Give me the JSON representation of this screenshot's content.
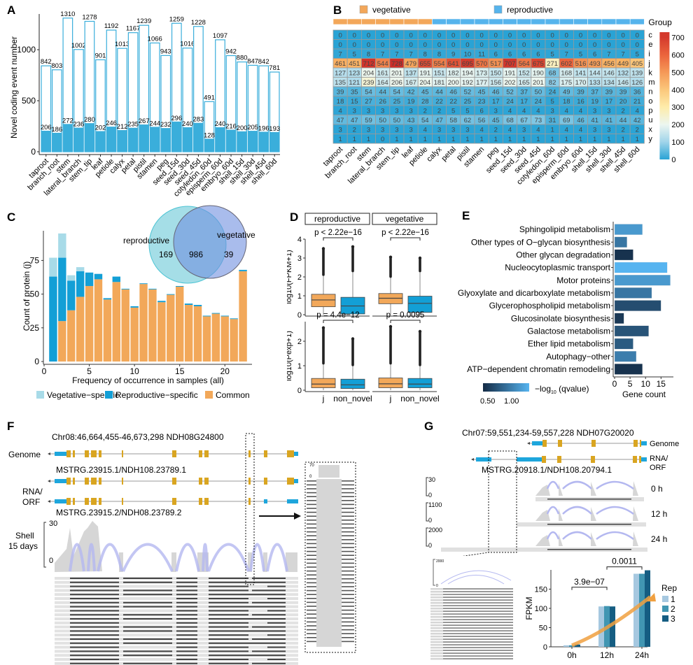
{
  "chart_data": [
    {
      "panel": "A",
      "type": "bar",
      "ylabel": "Novel coding event number",
      "xlabel": "",
      "ylim": [
        0,
        1350
      ],
      "yticks": [
        0,
        500,
        1000
      ],
      "categories": [
        "taproot",
        "branch_root",
        "stem",
        "lateral_branch",
        "stem_tip",
        "leaf",
        "petiole",
        "calyx",
        "petal",
        "pistil",
        "stamen",
        "peg",
        "seed_15d",
        "seed_30d",
        "seed_45d",
        "cotyledon_60d",
        "episperm_60d",
        "embryo_60d",
        "shell_15d",
        "shell_30d",
        "shell_45d",
        "shell_60d"
      ],
      "series": [
        {
          "name": "total",
          "values": [
            842,
            803,
            1310,
            1002,
            1278,
            901,
            1192,
            1013,
            1167,
            1239,
            1066,
            943,
            1259,
            1016,
            1228,
            491,
            1097,
            942,
            880,
            847,
            842,
            781
          ],
          "color": "#3aaedb"
        },
        {
          "name": "subset",
          "values": [
            206,
            186,
            272,
            236,
            280,
            202,
            246,
            212,
            235,
            267,
            244,
            232,
            296,
            240,
            283,
            128,
            240,
            216,
            200,
            205,
            196,
            193
          ],
          "color": "#3aaedb"
        }
      ]
    },
    {
      "panel": "B",
      "type": "heatmap",
      "group_title": "Group",
      "legend": [
        {
          "name": "vegetative",
          "color": "#f3a75a"
        },
        {
          "name": "reproductive",
          "color": "#56b4ec"
        }
      ],
      "columns": [
        "taproot",
        "branch_root",
        "stem",
        "lateral_branch",
        "stem_tip",
        "leaf",
        "petiole",
        "calyx",
        "petal",
        "pistil",
        "stamen",
        "peg",
        "seed_15d",
        "seed_30d",
        "seed_45d",
        "cotyledon_60d",
        "episperm_60d",
        "embryo_60d",
        "shell_15d",
        "shell_30d",
        "shell_45d",
        "shell_60d"
      ],
      "column_groups": [
        "vegetative",
        "vegetative",
        "vegetative",
        "vegetative",
        "vegetative",
        "vegetative",
        "vegetative",
        "reproductive",
        "reproductive",
        "reproductive",
        "reproductive",
        "reproductive",
        "reproductive",
        "reproductive",
        "reproductive",
        "reproductive",
        "reproductive",
        "reproductive",
        "reproductive",
        "reproductive",
        "reproductive",
        "reproductive"
      ],
      "rows": [
        "c",
        "e",
        "i",
        "j",
        "k",
        "m",
        "n",
        "o",
        "p",
        "u",
        "x",
        "y"
      ],
      "values": [
        [
          0,
          0,
          0,
          0,
          0,
          0,
          0,
          0,
          0,
          0,
          0,
          0,
          0,
          0,
          0,
          0,
          0,
          0,
          0,
          0,
          0,
          0
        ],
        [
          0,
          0,
          0,
          0,
          0,
          0,
          0,
          0,
          0,
          0,
          0,
          0,
          0,
          0,
          0,
          0,
          0,
          0,
          0,
          0,
          0,
          0
        ],
        [
          7,
          5,
          8,
          7,
          7,
          7,
          8,
          8,
          9,
          10,
          11,
          6,
          6,
          6,
          6,
          5,
          7,
          5,
          6,
          7,
          7,
          5
        ],
        [
          461,
          451,
          712,
          544,
          728,
          479,
          655,
          554,
          641,
          695,
          570,
          517,
          707,
          564,
          675,
          271,
          602,
          516,
          493,
          456,
          449,
          405
        ],
        [
          127,
          123,
          204,
          161,
          201,
          137,
          191,
          151,
          182,
          194,
          173,
          150,
          191,
          152,
          190,
          68,
          168,
          141,
          144,
          146,
          132,
          139
        ],
        [
          135,
          121,
          239,
          164,
          206,
          167,
          204,
          181,
          200,
          192,
          177,
          156,
          202,
          165,
          201,
          82,
          175,
          170,
          133,
          134,
          146,
          126
        ],
        [
          39,
          35,
          54,
          44,
          54,
          42,
          45,
          44,
          46,
          52,
          45,
          46,
          52,
          37,
          50,
          24,
          49,
          39,
          37,
          39,
          39,
          36
        ],
        [
          18,
          15,
          27,
          26,
          25,
          19,
          28,
          22,
          22,
          25,
          23,
          17,
          24,
          17,
          24,
          5,
          18,
          16,
          19,
          17,
          20,
          21
        ],
        [
          4,
          3,
          3,
          3,
          3,
          3,
          2,
          2,
          5,
          5,
          6,
          3,
          4,
          4,
          4,
          3,
          4,
          4,
          3,
          3,
          2,
          4
        ],
        [
          47,
          47,
          59,
          50,
          50,
          43,
          54,
          47,
          58,
          62,
          56,
          45,
          68,
          67,
          73,
          31,
          69,
          46,
          41,
          41,
          44,
          42
        ],
        [
          3,
          2,
          3,
          3,
          3,
          3,
          4,
          3,
          3,
          3,
          4,
          2,
          4,
          3,
          4,
          1,
          4,
          4,
          3,
          3,
          2,
          2
        ],
        [
          1,
          1,
          1,
          0,
          1,
          1,
          1,
          1,
          1,
          1,
          1,
          1,
          1,
          1,
          1,
          1,
          1,
          1,
          1,
          1,
          1,
          1
        ]
      ],
      "colorbar": {
        "ticks": [
          0,
          100,
          200,
          300,
          400,
          500,
          600,
          700
        ],
        "range": [
          0,
          730
        ]
      }
    },
    {
      "panel": "C",
      "type": "bar",
      "stacked": true,
      "xlabel": "Frequency of occurrence in samples (all)",
      "ylabel": "Count of protein (j)",
      "xlim": [
        0,
        23
      ],
      "ylim": [
        0,
        97
      ],
      "xticks": [
        0,
        5,
        10,
        15,
        20
      ],
      "yticks": [
        0,
        25,
        50,
        75
      ],
      "x": [
        1,
        2,
        3,
        4,
        5,
        6,
        7,
        8,
        9,
        10,
        11,
        12,
        13,
        14,
        15,
        16,
        17,
        18,
        19,
        20,
        21,
        22
      ],
      "series": [
        {
          "name": "Common",
          "color": "#f2a85a",
          "values": [
            0,
            30,
            38,
            48,
            56,
            61,
            46,
            59,
            53.5,
            40,
            57.5,
            53.5,
            44,
            49.5,
            55.5,
            42,
            41,
            33.5,
            35.5,
            33.5,
            31.5,
            67
          ]
        },
        {
          "name": "Reproductive−specific",
          "color": "#139fd6",
          "values": [
            63,
            47,
            22,
            19,
            10,
            4,
            1,
            4,
            0.5,
            1,
            0.5,
            0.5,
            1,
            0.5,
            0.5,
            1,
            1,
            0.5,
            0.5,
            0.5,
            0.5,
            1
          ]
        },
        {
          "name": "Vegetative−specific",
          "color": "#a8dbe8",
          "values": [
            14,
            18,
            4,
            3,
            0,
            0,
            0,
            0,
            0,
            0,
            0,
            0,
            0,
            0,
            0,
            0,
            0,
            0,
            0,
            0,
            0,
            0
          ]
        }
      ],
      "legend_position": "bottom",
      "venn": {
        "sets": [
          "reproductive",
          "vegetative"
        ],
        "only_reproductive": 169,
        "both": 986,
        "only_vegetative": 39
      }
    },
    {
      "panel": "D",
      "type": "box",
      "facets": [
        "reproductive",
        "vegetative"
      ],
      "categories": [
        "j",
        "non_novel"
      ],
      "rows": [
        {
          "ylabel": "log10(FPKM+1)",
          "ylim": [
            0,
            4
          ],
          "yticks": [
            0,
            1,
            2,
            3,
            4
          ],
          "pvalues": [
            "p < 2.22e−16",
            "p < 2.22e−16"
          ],
          "boxes": [
            {
              "facet": "reproductive",
              "cat": "j",
              "q1": 0.42,
              "median": 0.78,
              "q3": 1.08,
              "lo": 0,
              "hi": 2.05,
              "out_max": 3.5
            },
            {
              "facet": "reproductive",
              "cat": "non_novel",
              "q1": 0.04,
              "median": 0.46,
              "q3": 0.92,
              "lo": 0,
              "hi": 2.25,
              "out_max": 3.6
            },
            {
              "facet": "vegetative",
              "cat": "j",
              "q1": 0.58,
              "median": 0.87,
              "q3": 1.12,
              "lo": 0,
              "hi": 1.95,
              "out_max": 3.05
            },
            {
              "facet": "vegetative",
              "cat": "non_novel",
              "q1": 0.12,
              "median": 0.6,
              "q3": 0.98,
              "lo": 0,
              "hi": 2.25,
              "out_max": 3.0
            }
          ]
        },
        {
          "ylabel": "log10(Pexp+1)",
          "ylim": [
            0,
            2.8
          ],
          "yticks": [
            0,
            1,
            2
          ],
          "pvalues": [
            "p = 4.4e−12",
            "p = 0.0095"
          ],
          "boxes": [
            {
              "facet": "reproductive",
              "cat": "j",
              "q1": 0.1,
              "median": 0.25,
              "q3": 0.48,
              "lo": 0,
              "hi": 1.05,
              "out_max": 2.55
            },
            {
              "facet": "reproductive",
              "cat": "non_novel",
              "q1": 0.07,
              "median": 0.22,
              "q3": 0.45,
              "lo": 0,
              "hi": 0.98,
              "out_max": 2.1
            },
            {
              "facet": "vegetative",
              "cat": "j",
              "q1": 0.1,
              "median": 0.26,
              "q3": 0.5,
              "lo": 0,
              "hi": 1.05,
              "out_max": 2.6
            },
            {
              "facet": "vegetative",
              "cat": "non_novel",
              "q1": 0.1,
              "median": 0.25,
              "q3": 0.48,
              "lo": 0,
              "hi": 0.98,
              "out_max": 2.4
            }
          ]
        }
      ]
    },
    {
      "panel": "E",
      "type": "bar",
      "orientation": "horizontal",
      "xlabel": "Gene count",
      "xticks": [
        0,
        5,
        10,
        15
      ],
      "xlim": [
        0,
        19
      ],
      "categories": [
        "Sphingolipid metabolism",
        "Other types of O−glycan biosynthesis",
        "Other glycan degradation",
        "Nucleocytoplasmic transport",
        "Motor proteins",
        "Glyoxylate and dicarboxylate metabolism",
        "Glycerophospholipid metabolism",
        "Glucosinolate biosynthesis",
        "Galactose metabolism",
        "Ether lipid metabolism",
        "Autophagy−other",
        "ATP−dependent chromatin remodeling"
      ],
      "values": [
        9,
        4,
        6,
        17,
        18,
        12,
        15,
        3,
        11,
        6,
        7,
        9
      ],
      "qvalue": [
        1.1,
        0.85,
        0.35,
        1.3,
        1.1,
        0.85,
        0.55,
        0.4,
        0.6,
        0.65,
        0.9,
        0.35
      ],
      "colorbar": {
        "title": "−log",
        "sub": "10",
        "title_tail": " (qvalue)",
        "ticks": [
          "0.50",
          "1.00"
        ],
        "low": "#142b45",
        "high": "#56b4f0"
      }
    },
    {
      "panel": "G-bar",
      "type": "bar",
      "ylabel": "FPKM",
      "ylim": [
        0,
        200
      ],
      "yticks": [
        0,
        50,
        100,
        150
      ],
      "categories": [
        "0h",
        "12h",
        "24h"
      ],
      "series": [
        {
          "name": "1",
          "color": "#a6c8e0",
          "values": [
            4,
            105,
            190
          ]
        },
        {
          "name": "2",
          "color": "#4196b2",
          "values": [
            4,
            106,
            190
          ]
        },
        {
          "name": "3",
          "color": "#155d82",
          "values": [
            6,
            105,
            199
          ]
        }
      ],
      "legend_title": "Rep",
      "annotations": [
        {
          "from": "0h",
          "to": "12h",
          "text": "3.9e−07"
        },
        {
          "from": "12h",
          "to": "24h",
          "text": "0.0011"
        }
      ]
    }
  ],
  "panels": {
    "A": {
      "label": "A"
    },
    "B": {
      "label": "B"
    },
    "C": {
      "label": "C"
    },
    "D": {
      "label": "D"
    },
    "E": {
      "label": "E"
    },
    "F": {
      "label": "F",
      "locus": "Chr08:46,664,455-46,673,298   NDH08G24800",
      "genome_label": "Genome",
      "rna_label_1": "RNA/",
      "rna_label_2": "ORF",
      "transcript1": "MSTRG.23915.1/NDH108.23789.1",
      "transcript2": "MSTRG.23915.2/NDH08.23789.2",
      "track_label_1": "Shell",
      "track_label_2": "15 days",
      "scale_max": "30",
      "scale_min": "0",
      "inset_max": "70",
      "inset_min": "0"
    },
    "G": {
      "label": "G",
      "locus": "Chr07:59,551,234-59,557,228   NDH07G20020",
      "genome_label": "Genome",
      "rna_label_1": "RNA/",
      "rna_label_2": "ORF",
      "transcript": "MSTRG.20918.1/NDH108.20794.1",
      "tracks": [
        {
          "time": "0 h",
          "max": "30",
          "min": "0"
        },
        {
          "time": "12 h",
          "max": "1100",
          "min": "0"
        },
        {
          "time": "24 h",
          "max": "2000",
          "min": "0"
        }
      ],
      "inset_max": "2000",
      "inset_min": "0"
    }
  }
}
